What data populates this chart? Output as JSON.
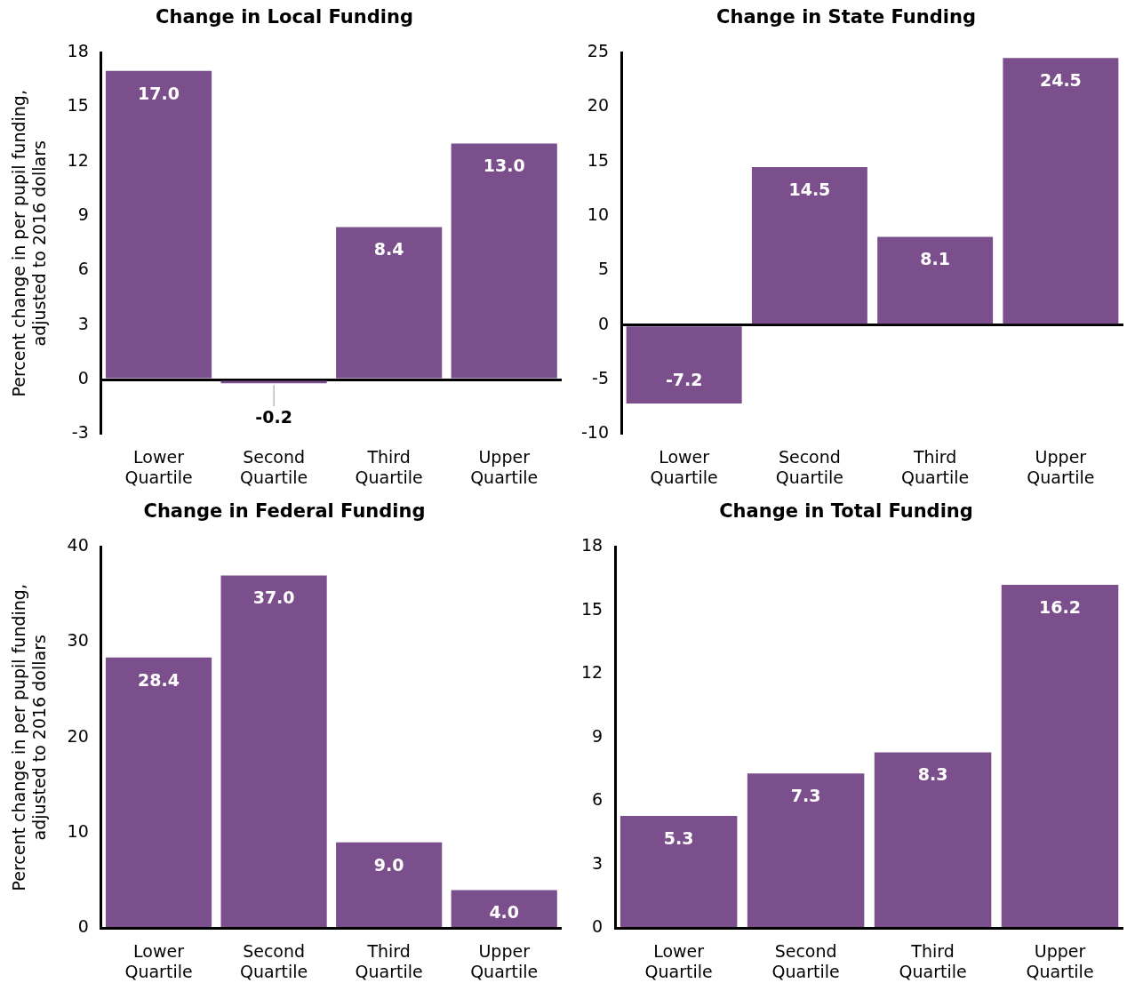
{
  "chart_data": [
    {
      "type": "bar",
      "title": "Change in Local Funding",
      "ylabel": "Percent change in per pupil funding, adjusted to 2016 dollars",
      "categories": [
        "Lower Quartile",
        "Second Quartile",
        "Third Quartile",
        "Upper Quartile"
      ],
      "values": [
        17.0,
        -0.2,
        8.4,
        13.0
      ],
      "color": "#7b4f8c",
      "ylim": [
        -3,
        18
      ],
      "yticks": [
        -3,
        0,
        3,
        6,
        9,
        12,
        15,
        18
      ],
      "data_labels": true,
      "value_labels": [
        "17.0",
        "-0.2",
        "8.4",
        "13.0"
      ]
    },
    {
      "type": "bar",
      "title": "Change in State Funding",
      "categories": [
        "Lower Quartile",
        "Second Quartile",
        "Third Quartile",
        "Upper Quartile"
      ],
      "values": [
        -7.2,
        14.5,
        8.1,
        24.5
      ],
      "color": "#7b4f8c",
      "ylim": [
        -10,
        25
      ],
      "yticks": [
        -10,
        -5,
        0,
        5,
        10,
        15,
        20,
        25
      ],
      "data_labels": true,
      "value_labels": [
        "-7.2",
        "14.5",
        "8.1",
        "24.5"
      ]
    },
    {
      "type": "bar",
      "title": "Change in Federal Funding",
      "ylabel": "Percent change in per pupil funding, adjusted to 2016 dollars",
      "categories": [
        "Lower Quartile",
        "Second Quartile",
        "Third Quartile",
        "Upper Quartile"
      ],
      "values": [
        28.4,
        37.0,
        9.0,
        4.0
      ],
      "color": "#7b4f8c",
      "ylim": [
        0,
        40
      ],
      "yticks": [
        0,
        10,
        20,
        30,
        40
      ],
      "data_labels": true,
      "value_labels": [
        "28.4",
        "37.0",
        "9.0",
        "4.0"
      ]
    },
    {
      "type": "bar",
      "title": "Change in Total Funding",
      "categories": [
        "Lower Quartile",
        "Second Quartile",
        "Third Quartile",
        "Upper Quartile"
      ],
      "values": [
        5.3,
        7.3,
        8.3,
        16.2
      ],
      "color": "#7b4f8c",
      "ylim": [
        0,
        18
      ],
      "yticks": [
        0,
        3,
        6,
        9,
        12,
        15,
        18
      ],
      "data_labels": true,
      "value_labels": [
        "5.3",
        "7.3",
        "8.3",
        "16.2"
      ]
    }
  ]
}
